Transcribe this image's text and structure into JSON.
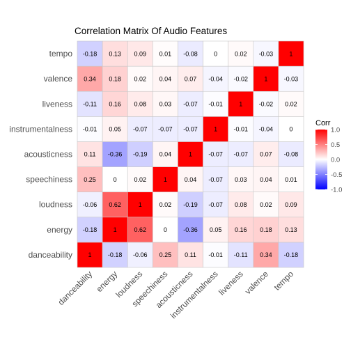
{
  "chart_data": {
    "type": "heatmap",
    "title": "Correlation Matrix Of Audio Features",
    "xlabel": "",
    "ylabel": "",
    "x_categories": [
      "danceability",
      "energy",
      "loudness",
      "speechiness",
      "acousticness",
      "instrumentalness",
      "liveness",
      "valence",
      "tempo"
    ],
    "y_categories": [
      "danceability",
      "energy",
      "loudness",
      "speechiness",
      "acousticness",
      "instrumentalness",
      "liveness",
      "valence",
      "tempo"
    ],
    "values": [
      [
        1,
        -0.18,
        -0.06,
        0.25,
        0.11,
        -0.01,
        -0.11,
        0.34,
        -0.18
      ],
      [
        -0.18,
        1,
        0.62,
        0,
        -0.36,
        0.05,
        0.16,
        0.18,
        0.13
      ],
      [
        -0.06,
        0.62,
        1,
        0.02,
        -0.19,
        -0.07,
        0.08,
        0.02,
        0.09
      ],
      [
        0.25,
        0,
        0.02,
        1,
        0.04,
        -0.07,
        0.03,
        0.04,
        0.01
      ],
      [
        0.11,
        -0.36,
        -0.19,
        0.04,
        1,
        -0.07,
        -0.07,
        0.07,
        -0.08
      ],
      [
        -0.01,
        0.05,
        -0.07,
        -0.07,
        -0.07,
        1,
        -0.01,
        -0.04,
        0
      ],
      [
        -0.11,
        0.16,
        0.08,
        0.03,
        -0.07,
        -0.01,
        1,
        -0.02,
        0.02
      ],
      [
        0.34,
        0.18,
        0.02,
        0.04,
        0.07,
        -0.04,
        -0.02,
        1,
        -0.03
      ],
      [
        -0.18,
        0.13,
        0.09,
        0.01,
        -0.08,
        0,
        0.02,
        -0.03,
        1
      ]
    ],
    "value_labels": [
      [
        "1",
        "-0.18",
        "-0.06",
        "0.25",
        "0.11",
        "-0.01",
        "-0.11",
        "0.34",
        "-0.18"
      ],
      [
        "-0.18",
        "1",
        "0.62",
        "0",
        "-0.36",
        "0.05",
        "0.16",
        "0.18",
        "0.13"
      ],
      [
        "-0.06",
        "0.62",
        "1",
        "0.02",
        "-0.19",
        "-0.07",
        "0.08",
        "0.02",
        "0.09"
      ],
      [
        "0.25",
        "0",
        "0.02",
        "1",
        "0.04",
        "-0.07",
        "0.03",
        "0.04",
        "0.01"
      ],
      [
        "0.11",
        "-0.36",
        "-0.19",
        "0.04",
        "1",
        "-0.07",
        "-0.07",
        "0.07",
        "-0.08"
      ],
      [
        "-0.01",
        "0.05",
        "-0.07",
        "-0.07",
        "-0.07",
        "1",
        "-0.01",
        "-0.04",
        "0"
      ],
      [
        "-0.11",
        "0.16",
        "0.08",
        "0.03",
        "-0.07",
        "-0.01",
        "1",
        "-0.02",
        "0.02"
      ],
      [
        "0.34",
        "0.18",
        "0.02",
        "0.04",
        "0.07",
        "-0.04",
        "-0.02",
        "1",
        "-0.03"
      ],
      [
        "-0.18",
        "0.13",
        "0.09",
        "0.01",
        "-0.08",
        "0",
        "0.02",
        "-0.03",
        "1"
      ]
    ],
    "color_scale": {
      "low": "#0000ff",
      "mid": "#ffffff",
      "high": "#ff0000",
      "range": [
        -1,
        1
      ]
    },
    "legend": {
      "title": "Corr",
      "placement": "right",
      "ticks": [
        1.0,
        0.5,
        0.0,
        -0.5,
        -1.0
      ],
      "tick_labels": [
        "1.0",
        "0.5",
        "0.0",
        "-0.5",
        "-1.0"
      ]
    },
    "grid": false,
    "cell_border_color": "#c8c8c8"
  }
}
